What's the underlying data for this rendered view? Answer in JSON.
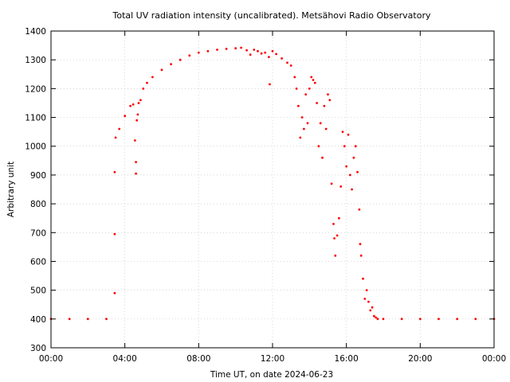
{
  "chart_data": {
    "type": "scatter",
    "title": "Total UV radiation intensity (uncalibrated). Metsähovi Radio Observatory",
    "xlabel": "Time UT, on date 2024-06-23",
    "ylabel": "Arbitrary unit",
    "xlim": [
      0,
      24
    ],
    "ylim": [
      300,
      1400
    ],
    "x_ticks": [
      "00:00",
      "04:00",
      "08:00",
      "12:00",
      "16:00",
      "20:00",
      "00:00"
    ],
    "y_ticks": [
      300,
      400,
      500,
      600,
      700,
      800,
      900,
      1000,
      1100,
      1200,
      1300,
      1400
    ],
    "grid": true,
    "series": [
      {
        "color": "#ff0000",
        "x": [
          0.0,
          1.0,
          2.0,
          3.0,
          3.45,
          3.45,
          3.45,
          3.5,
          3.7,
          4.0,
          4.3,
          4.45,
          4.55,
          4.6,
          4.6,
          4.65,
          4.7,
          4.75,
          4.85,
          5.0,
          5.2,
          5.5,
          6.0,
          6.5,
          7.0,
          7.5,
          8.0,
          8.5,
          9.0,
          9.5,
          10.0,
          10.3,
          10.6,
          10.8,
          11.0,
          11.2,
          11.4,
          11.6,
          11.8,
          11.85,
          12.0,
          12.2,
          12.5,
          12.8,
          13.0,
          13.2,
          13.3,
          13.4,
          13.5,
          13.6,
          13.7,
          13.8,
          13.9,
          14.0,
          14.1,
          14.2,
          14.3,
          14.4,
          14.5,
          14.6,
          14.7,
          14.8,
          14.9,
          15.0,
          15.1,
          15.2,
          15.3,
          15.35,
          15.4,
          15.5,
          15.6,
          15.7,
          15.8,
          15.9,
          16.0,
          16.1,
          16.2,
          16.3,
          16.4,
          16.5,
          16.6,
          16.7,
          16.75,
          16.8,
          16.9,
          17.0,
          17.1,
          17.2,
          17.3,
          17.4,
          17.5,
          17.6,
          17.7,
          18.0,
          19.0,
          20.0,
          21.0,
          22.0,
          23.0,
          24.0
        ],
        "y": [
          400,
          400,
          400,
          400,
          490,
          695,
          910,
          1030,
          1060,
          1105,
          1140,
          1145,
          1020,
          945,
          905,
          1090,
          1110,
          1150,
          1160,
          1200,
          1220,
          1240,
          1265,
          1285,
          1300,
          1315,
          1325,
          1330,
          1335,
          1338,
          1340,
          1342,
          1333,
          1318,
          1335,
          1330,
          1322,
          1325,
          1310,
          1215,
          1330,
          1320,
          1305,
          1290,
          1280,
          1240,
          1200,
          1140,
          1030,
          1100,
          1060,
          1180,
          1080,
          1200,
          1240,
          1230,
          1220,
          1150,
          1000,
          1080,
          960,
          1140,
          1060,
          1180,
          1160,
          870,
          730,
          680,
          620,
          690,
          750,
          860,
          1050,
          1000,
          930,
          1040,
          900,
          850,
          960,
          1000,
          910,
          780,
          660,
          620,
          540,
          470,
          500,
          460,
          430,
          440,
          410,
          405,
          400,
          400,
          400,
          400,
          400,
          400,
          400,
          400
        ]
      }
    ]
  }
}
